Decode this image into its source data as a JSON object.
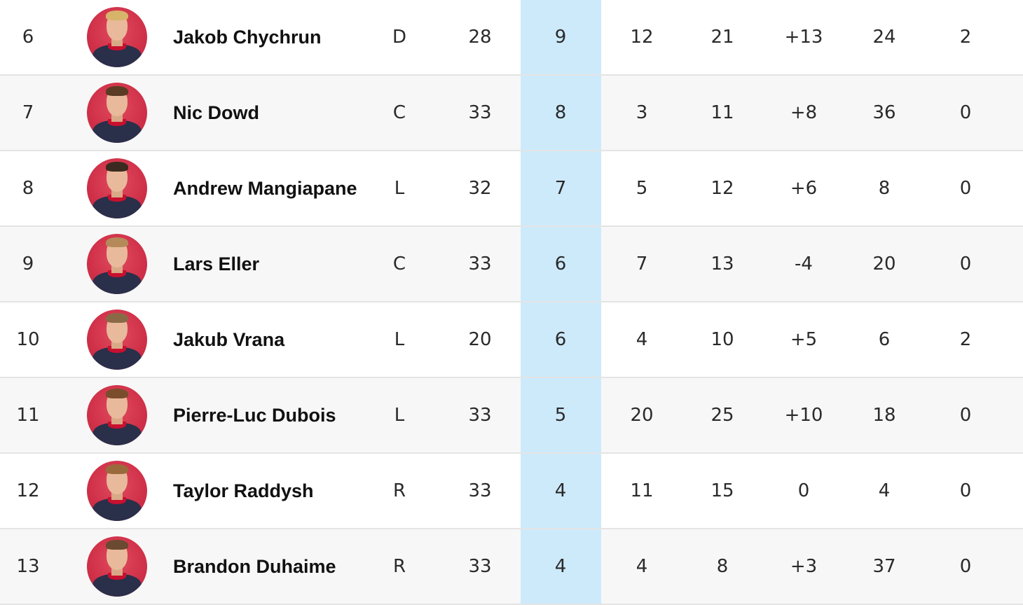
{
  "players": [
    {
      "rank": "6",
      "name": "Jakob Chychrun",
      "pos": "D",
      "gp": "28",
      "g": "9",
      "a": "12",
      "p": "21",
      "pm": "+13",
      "pim": "24",
      "ppg": "2",
      "hair": "#d8b36a"
    },
    {
      "rank": "7",
      "name": "Nic Dowd",
      "pos": "C",
      "gp": "33",
      "g": "8",
      "a": "3",
      "p": "11",
      "pm": "+8",
      "pim": "36",
      "ppg": "0",
      "hair": "#5b3b24"
    },
    {
      "rank": "8",
      "name": "Andrew Mangiapane",
      "pos": "L",
      "gp": "32",
      "g": "7",
      "a": "5",
      "p": "12",
      "pm": "+6",
      "pim": "8",
      "ppg": "0",
      "hair": "#3a2a1f"
    },
    {
      "rank": "9",
      "name": "Lars Eller",
      "pos": "C",
      "gp": "33",
      "g": "6",
      "a": "7",
      "p": "13",
      "pm": "-4",
      "pim": "20",
      "ppg": "0",
      "hair": "#b58a5a"
    },
    {
      "rank": "10",
      "name": "Jakub Vrana",
      "pos": "L",
      "gp": "20",
      "g": "6",
      "a": "4",
      "p": "10",
      "pm": "+5",
      "pim": "6",
      "ppg": "2",
      "hair": "#8a6a46"
    },
    {
      "rank": "11",
      "name": "Pierre-Luc Dubois",
      "pos": "L",
      "gp": "33",
      "g": "5",
      "a": "20",
      "p": "25",
      "pm": "+10",
      "pim": "18",
      "ppg": "0",
      "hair": "#7a4e2c"
    },
    {
      "rank": "12",
      "name": "Taylor Raddysh",
      "pos": "R",
      "gp": "33",
      "g": "4",
      "a": "11",
      "p": "15",
      "pm": "0",
      "pim": "4",
      "ppg": "0",
      "hair": "#9a6a3c"
    },
    {
      "rank": "13",
      "name": "Brandon Duhaime",
      "pos": "R",
      "gp": "33",
      "g": "4",
      "a": "4",
      "p": "8",
      "pm": "+3",
      "pim": "37",
      "ppg": "0",
      "hair": "#6a4a30"
    }
  ],
  "colors": {
    "highlight_column": "#cdeafb",
    "avatar_bg": "#d33a4f",
    "row_alt": "#f7f7f7",
    "divider": "#e4e4e4"
  }
}
